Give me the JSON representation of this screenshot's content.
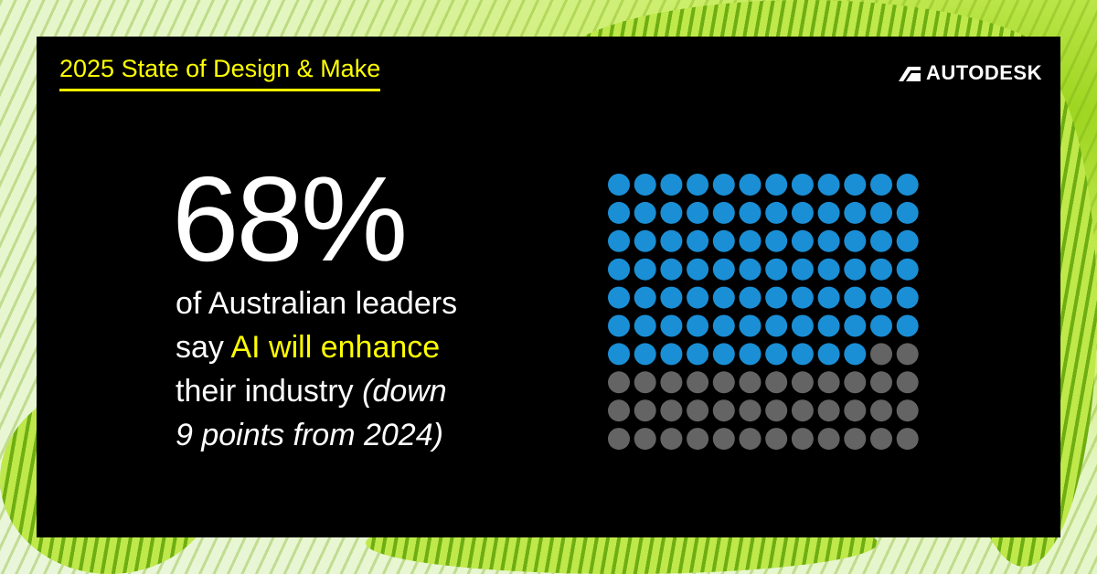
{
  "kicker": "2025 State of Design & Make",
  "brand": "AUTODESK",
  "headline": "68%",
  "body": {
    "line1": "of Australian leaders",
    "line2_plain": "say ",
    "line2_highlight": "AI will enhance",
    "line3_plain": "their industry ",
    "line3_italic": "(down",
    "line4_italic": "9 points from 2024)"
  },
  "colors": {
    "filled": "#1a8fd6",
    "empty": "#646464",
    "highlight": "#ffff00"
  },
  "chart_data": {
    "type": "waffle",
    "columns": 12,
    "rows": 10,
    "total": 120,
    "filled": 82,
    "percent": 68,
    "fill_order": "row-major from top-left"
  }
}
